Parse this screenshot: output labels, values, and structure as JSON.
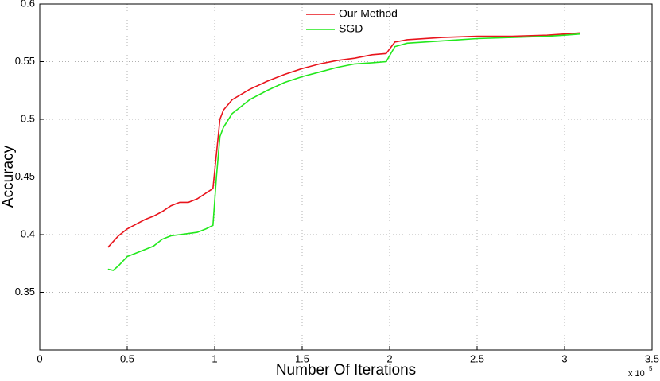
{
  "chart_data": {
    "type": "line",
    "x_label": "Number Of Iterations",
    "y_label": "Accuracy",
    "x_scale_label": "x 10",
    "x_scale_exponent": "5",
    "x": [
      0.39,
      0.42,
      0.45,
      0.5,
      0.55,
      0.6,
      0.65,
      0.7,
      0.75,
      0.8,
      0.85,
      0.9,
      0.95,
      0.99,
      1.01,
      1.03,
      1.05,
      1.1,
      1.2,
      1.3,
      1.4,
      1.5,
      1.6,
      1.7,
      1.8,
      1.9,
      1.98,
      2.03,
      2.1,
      2.3,
      2.5,
      2.7,
      2.9,
      3.0,
      3.09
    ],
    "series": [
      {
        "name": "Our Method",
        "color": "#e8141c",
        "values": [
          0.389,
          0.394,
          0.399,
          0.405,
          0.409,
          0.413,
          0.416,
          0.42,
          0.425,
          0.428,
          0.428,
          0.431,
          0.436,
          0.44,
          0.47,
          0.5,
          0.508,
          0.517,
          0.526,
          0.533,
          0.539,
          0.544,
          0.548,
          0.551,
          0.553,
          0.556,
          0.557,
          0.567,
          0.569,
          0.571,
          0.572,
          0.572,
          0.573,
          0.574,
          0.575
        ]
      },
      {
        "name": "SGD",
        "color": "#22e81c",
        "values": [
          0.37,
          0.369,
          0.373,
          0.381,
          0.384,
          0.387,
          0.39,
          0.396,
          0.399,
          0.4,
          0.401,
          0.402,
          0.405,
          0.408,
          0.45,
          0.485,
          0.493,
          0.505,
          0.517,
          0.525,
          0.532,
          0.537,
          0.541,
          0.545,
          0.548,
          0.549,
          0.55,
          0.563,
          0.566,
          0.568,
          0.57,
          0.571,
          0.572,
          0.573,
          0.574
        ]
      }
    ],
    "xlim": [
      0,
      3.5
    ],
    "xticks": [
      0,
      0.5,
      1,
      1.5,
      2,
      2.5,
      3,
      3.5
    ],
    "ylim": [
      0.3,
      0.6
    ],
    "yticks": [
      0.35,
      0.4,
      0.45,
      0.5,
      0.55,
      0.6
    ],
    "grid": true,
    "legend": "top"
  }
}
